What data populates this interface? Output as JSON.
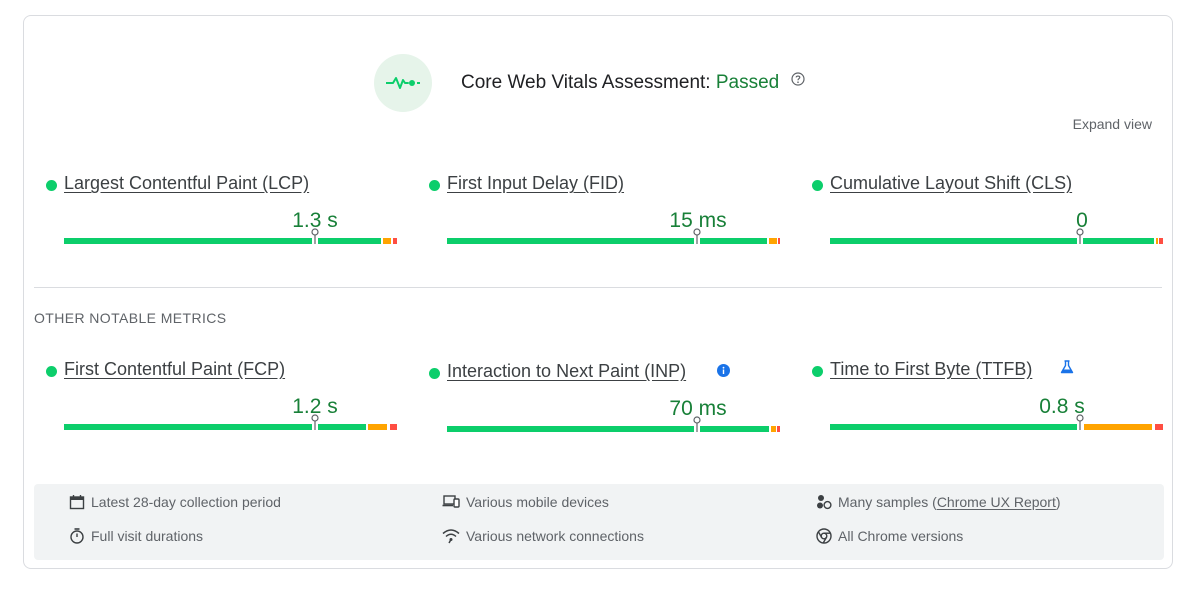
{
  "assessment": {
    "title_prefix": "Core Web Vitals Assessment:",
    "status": "Passed",
    "icon": "vitals-pulse-icon",
    "help_icon": "help-circle-icon",
    "expand_label": "Expand view"
  },
  "core_metrics": [
    {
      "name": "Largest Contentful Paint (LCP)",
      "value": "1.3 s",
      "rating": "good"
    },
    {
      "name": "First Input Delay (FID)",
      "value": "15 ms",
      "rating": "good"
    },
    {
      "name": "Cumulative Layout Shift (CLS)",
      "value": "0",
      "rating": "good"
    }
  ],
  "other_section_label": "OTHER NOTABLE METRICS",
  "other_metrics": [
    {
      "name": "First Contentful Paint (FCP)",
      "value": "1.2 s",
      "rating": "good"
    },
    {
      "name": "Interaction to Next Paint (INP)",
      "value": "70 ms",
      "rating": "good",
      "badge_icon": "info-icon"
    },
    {
      "name": "Time to First Byte (TTFB)",
      "value": "0.8 s",
      "rating": "good",
      "badge_icon": "experimental-flask-icon"
    }
  ],
  "footer": {
    "collection_period": "Latest 28-day collection period",
    "devices": "Various mobile devices",
    "samples_prefix": "Many samples (",
    "samples_link": "Chrome UX Report",
    "samples_suffix": ")",
    "visit_durations": "Full visit durations",
    "network": "Various network connections",
    "chrome_versions": "All Chrome versions"
  },
  "colors": {
    "good": "#0cce6b",
    "needs_improvement": "#ffa400",
    "poor": "#ff4e42",
    "passed_text": "#188038",
    "badge_blue": "#1a73e8"
  }
}
